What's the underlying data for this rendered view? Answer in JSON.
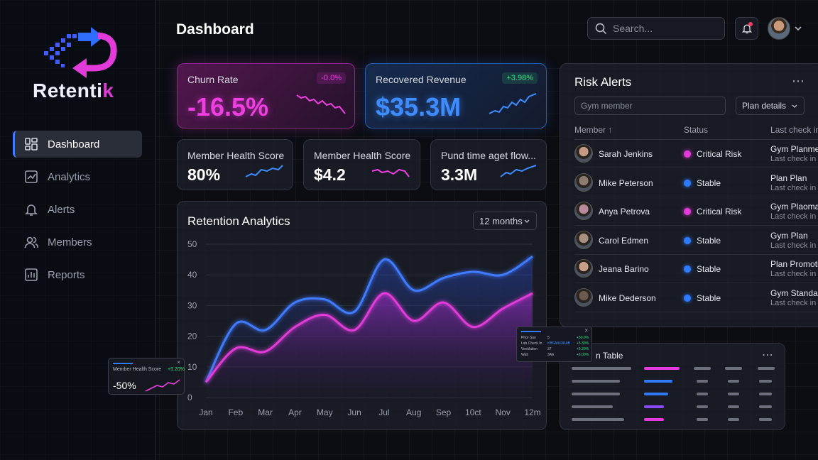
{
  "brand": {
    "name_main": "Retenti",
    "name_accent": "k"
  },
  "nav": [
    {
      "label": "Dashboard",
      "icon": "grid-icon",
      "active": true
    },
    {
      "label": "Analytics",
      "icon": "line-chart-icon",
      "active": false
    },
    {
      "label": "Alerts",
      "icon": "bell-icon",
      "active": false
    },
    {
      "label": "Members",
      "icon": "users-icon",
      "active": false
    },
    {
      "label": "Reports",
      "icon": "bar-report-icon",
      "active": false
    }
  ],
  "header": {
    "title": "Dashboard",
    "search_placeholder": "Search..."
  },
  "kpis": {
    "churn": {
      "label": "Churn Rate",
      "value": "-16.5%",
      "badge": "-0.0%"
    },
    "revenue": {
      "label": "Recovered Revenue",
      "value": "$35.3M",
      "badge": "+3.98%"
    },
    "health1": {
      "label": "Member Health Score",
      "value": "80%"
    },
    "health2": {
      "label": "Member Health Score",
      "value": "$4.2"
    },
    "pund": {
      "label": "Pund time aget flow...",
      "value": "3.3M"
    }
  },
  "analytics": {
    "title": "Retention Analytics",
    "range": "12 months"
  },
  "chart_data": {
    "type": "area",
    "categories": [
      "Jan",
      "Feb",
      "Mar",
      "Apr",
      "May",
      "Jun",
      "Jul",
      "Aug",
      "Sep",
      "10ct",
      "Nov",
      "12m"
    ],
    "y_ticks": [
      "0",
      "10",
      "20",
      "30",
      "40",
      "50"
    ],
    "ylim": [
      0,
      50
    ],
    "grid": true,
    "series": [
      {
        "color": "#3f7bff",
        "values": [
          5,
          24,
          22,
          31,
          32,
          28,
          45,
          35,
          39,
          41,
          40,
          46
        ]
      },
      {
        "color": "#e23bd9",
        "values": [
          5,
          16,
          15,
          23,
          27,
          22,
          34,
          25,
          31,
          23,
          29,
          34
        ]
      }
    ]
  },
  "risk": {
    "title": "Risk Alerts",
    "more": "⋯",
    "filter_placeholder": "Gym member",
    "plan_select": "Plan details",
    "headers": {
      "member": "Member ↑",
      "status": "Status",
      "last": "Last check in"
    },
    "rows": [
      {
        "name": "Sarah Jenkins",
        "status": "Critical Risk",
        "color": "#e23bd9",
        "l1": "Gym Planmem",
        "l2": "Last check in"
      },
      {
        "name": "Mike Peterson",
        "status": "Stable",
        "color": "#2f7bff",
        "l1": "Plan Plan",
        "l2": "Last check in"
      },
      {
        "name": "Anya Petrova",
        "status": "Critical Risk",
        "color": "#e23bd9",
        "l1": "Gym Plaoma",
        "l2": "Last check in"
      },
      {
        "name": "Carol Edmen",
        "status": "Stable",
        "color": "#2f7bff",
        "l1": "Gym Plan",
        "l2": "Last check in"
      },
      {
        "name": "Jeana Barino",
        "status": "Stable",
        "color": "#2f7bff",
        "l1": "Plan Promoti",
        "l2": "Last check in"
      },
      {
        "name": "Mike Dederson",
        "status": "Stable",
        "color": "#2f7bff",
        "l1": "Gym Standar",
        "l2": "Last check in"
      }
    ]
  },
  "mini_table": {
    "title": "n Table",
    "more": "⋯"
  },
  "float_left": {
    "label": "Member Health Score",
    "badge": "+5.20%",
    "value": "-50%"
  },
  "float_right": {
    "rows": [
      {
        "k": "Phor Sue",
        "v": "5",
        "d": "+50.0%"
      },
      {
        "k": "Lab Check In",
        "v": "KBSAIUDKAB",
        "d": "+5.30%"
      },
      {
        "k": "Veeklation",
        "v": "37",
        "d": "+6.20%"
      },
      {
        "k": "Walt",
        "v": "3AE",
        "d": "+6.00%"
      }
    ]
  }
}
